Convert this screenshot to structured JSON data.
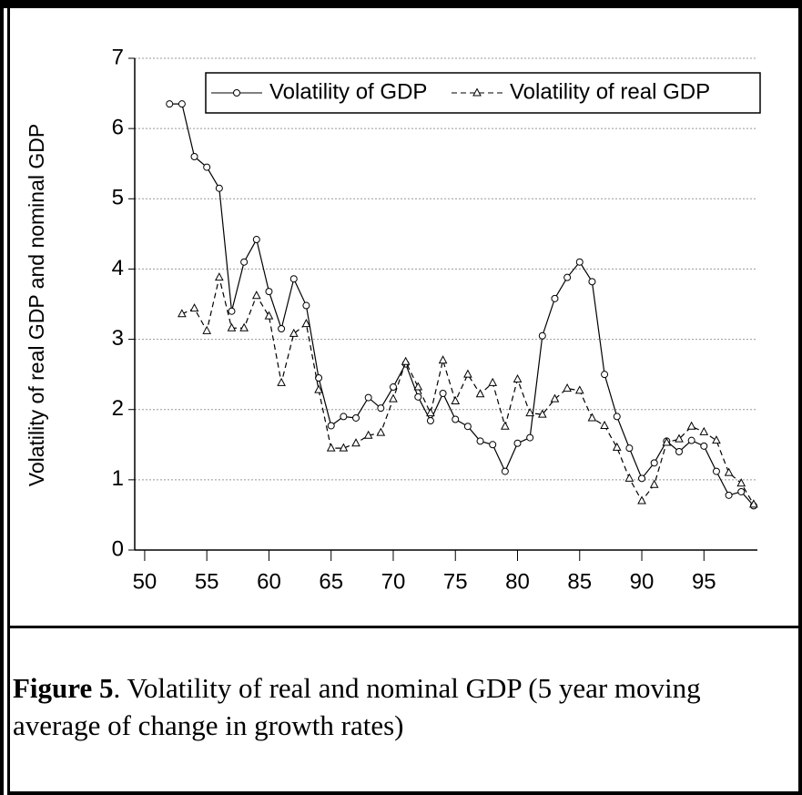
{
  "chart_data": {
    "type": "line",
    "ylabel": "Volatility of real GDP and nominal GDP",
    "x": [
      52,
      53,
      54,
      55,
      56,
      57,
      58,
      59,
      60,
      61,
      62,
      63,
      64,
      65,
      66,
      67,
      68,
      69,
      70,
      71,
      72,
      73,
      74,
      75,
      76,
      77,
      78,
      79,
      80,
      81,
      82,
      83,
      84,
      85,
      86,
      87,
      88,
      89,
      90,
      91,
      92,
      93,
      94,
      95,
      96,
      97,
      98,
      99
    ],
    "series": [
      {
        "name": "Volatility of GDP",
        "color": "#000000",
        "marker": "circle",
        "dash": false,
        "values": [
          6.35,
          6.35,
          5.6,
          5.45,
          5.15,
          3.4,
          4.1,
          4.42,
          3.68,
          3.15,
          3.86,
          3.48,
          2.45,
          1.77,
          1.9,
          1.88,
          2.17,
          2.02,
          2.32,
          2.65,
          2.18,
          1.84,
          2.23,
          1.86,
          1.76,
          1.55,
          1.5,
          1.12,
          1.52,
          1.6,
          3.05,
          3.58,
          3.88,
          4.1,
          3.82,
          2.5,
          1.9,
          1.45,
          1.02,
          1.24,
          1.55,
          1.4,
          1.56,
          1.48,
          1.12,
          0.78,
          0.83,
          0.63
        ]
      },
      {
        "name": "Volatility of real GDP",
        "color": "#000000",
        "marker": "triangle",
        "dash": true,
        "values": [
          null,
          3.36,
          3.44,
          3.12,
          3.88,
          3.16,
          3.16,
          3.62,
          3.33,
          2.38,
          3.08,
          3.22,
          2.28,
          1.45,
          1.45,
          1.52,
          1.63,
          1.67,
          2.15,
          2.68,
          2.32,
          1.95,
          2.7,
          2.12,
          2.5,
          2.22,
          2.38,
          1.76,
          2.43,
          1.95,
          1.93,
          2.15,
          2.3,
          2.27,
          1.88,
          1.77,
          1.46,
          1.02,
          0.7,
          0.93,
          1.53,
          1.58,
          1.76,
          1.68,
          1.56,
          1.1,
          0.95,
          0.65
        ]
      }
    ],
    "xlim": [
      49.2,
      99.3
    ],
    "xticks": [
      50,
      55,
      60,
      65,
      70,
      75,
      80,
      85,
      90,
      95
    ],
    "ylim": [
      0,
      7
    ],
    "yticks": [
      0,
      1,
      2,
      3,
      4,
      5,
      6,
      7
    ],
    "grid": true
  },
  "caption": {
    "label": "Figure 5",
    "text": ". Volatility of real and nominal GDP (5 year moving average of change in growth rates)"
  }
}
